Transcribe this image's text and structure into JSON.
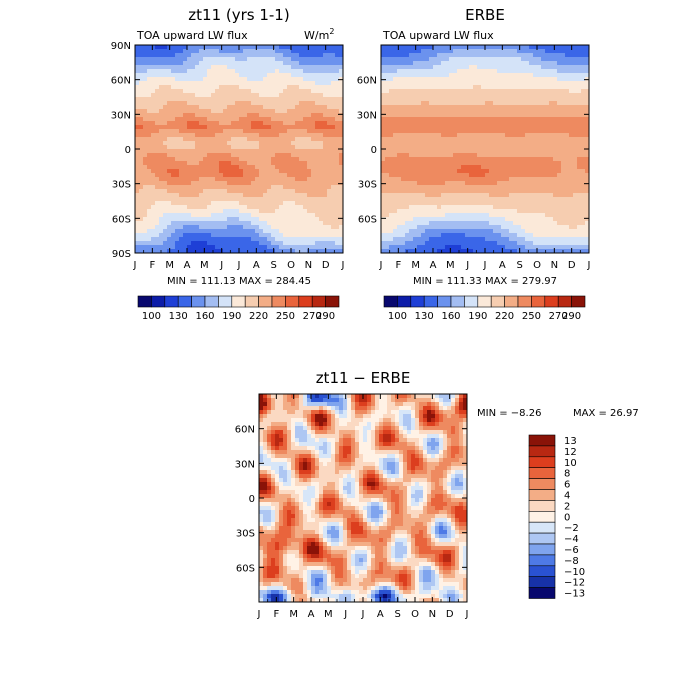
{
  "chart_data": [
    {
      "type": "heatmap",
      "id": "model",
      "title": "zt11 (yrs 1-1)",
      "subtitle_left": "TOA upward LW flux",
      "units_prefix": "W/m",
      "units_exp": "2",
      "x_ticks": [
        "J",
        "F",
        "M",
        "A",
        "M",
        "J",
        "J",
        "A",
        "S",
        "O",
        "N",
        "D",
        "J"
      ],
      "y_ticks": [
        "90N",
        "60N",
        "30N",
        "0",
        "30S",
        "60S",
        "90S"
      ],
      "y_values": [
        90,
        60,
        30,
        0,
        -30,
        -60,
        -90
      ],
      "ylim": [
        -90,
        90
      ],
      "xlim": [
        0,
        12
      ],
      "stats": "MIN = 111.13 MAX = 284.45",
      "min": 111.13,
      "max": 284.45,
      "colorbar_labels": [
        "100",
        "130",
        "160",
        "190",
        "220",
        "250",
        "270",
        "290"
      ],
      "colorbar_levels": [
        100,
        115,
        130,
        145,
        160,
        175,
        190,
        205,
        220,
        235,
        250,
        260,
        270,
        280,
        290
      ]
    },
    {
      "type": "heatmap",
      "id": "obs",
      "title": "ERBE",
      "subtitle_left": "TOA upward LW flux",
      "x_ticks": [
        "J",
        "F",
        "M",
        "A",
        "M",
        "J",
        "J",
        "A",
        "S",
        "O",
        "N",
        "D",
        "J"
      ],
      "y_ticks": [
        "60N",
        "30N",
        "0",
        "30S",
        "60S"
      ],
      "y_values": [
        60,
        30,
        0,
        -30,
        -60
      ],
      "ylim": [
        -90,
        90
      ],
      "xlim": [
        0,
        12
      ],
      "stats": "MIN = 111.33 MAX = 279.97",
      "min": 111.33,
      "max": 279.97,
      "colorbar_labels": [
        "100",
        "130",
        "160",
        "190",
        "220",
        "250",
        "270",
        "290"
      ],
      "colorbar_levels": [
        100,
        115,
        130,
        145,
        160,
        175,
        190,
        205,
        220,
        235,
        250,
        260,
        270,
        280,
        290
      ]
    },
    {
      "type": "heatmap",
      "id": "diff",
      "title": "zt11 − ERBE",
      "x_ticks": [
        "J",
        "F",
        "M",
        "A",
        "M",
        "J",
        "J",
        "A",
        "S",
        "O",
        "N",
        "D",
        "J"
      ],
      "y_ticks": [
        "60N",
        "30N",
        "0",
        "30S",
        "60S"
      ],
      "y_values": [
        60,
        30,
        0,
        -30,
        -60
      ],
      "ylim": [
        -90,
        90
      ],
      "xlim": [
        0,
        12
      ],
      "stats_min": "MIN =  −8.26",
      "stats_max": "MAX =  26.97",
      "min": -8.26,
      "max": 26.97,
      "colorbar_labels": [
        "13",
        "12",
        "10",
        "8",
        "6",
        "4",
        "2",
        "0",
        "−2",
        "−4",
        "−6",
        "−8",
        "−10",
        "−12",
        "−13"
      ],
      "colorbar_levels": [
        13,
        12,
        10,
        8,
        6,
        4,
        2,
        0,
        -2,
        -4,
        -6,
        -8,
        -10,
        -12,
        -13
      ]
    }
  ],
  "colors": {
    "abs_scale": [
      "#08086e",
      "#0c1ca8",
      "#1e3fd6",
      "#3a66e8",
      "#6b92ee",
      "#a3bdf2",
      "#d4e3f8",
      "#fbe9d9",
      "#f6cdb0",
      "#f3ad86",
      "#ee8a60",
      "#e9643c",
      "#dc3e1e",
      "#b82812",
      "#8a1308"
    ],
    "diff_scale": [
      "#8a1308",
      "#b82812",
      "#dc3e1e",
      "#e9643c",
      "#ee8a60",
      "#f3ad86",
      "#fbd9c2",
      "#fff2e6",
      "#d7e6f8",
      "#aec7f3",
      "#7fa4ee",
      "#4e7ae6",
      "#2a52d2",
      "#1732a8",
      "#08086e"
    ]
  }
}
